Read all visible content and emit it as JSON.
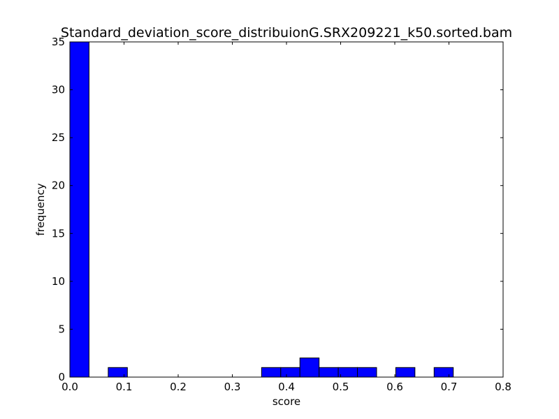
{
  "chart_data": {
    "type": "bar",
    "title": "Standard_deviation_score_distribuionG.SRX209221_k50.sorted.bam",
    "xlabel": "score",
    "ylabel": "frequency",
    "xlim": [
      0,
      0.8
    ],
    "ylim": [
      0,
      35
    ],
    "xticks": [
      "0.0",
      "0.1",
      "0.2",
      "0.3",
      "0.4",
      "0.5",
      "0.6",
      "0.7",
      "0.8"
    ],
    "yticks": [
      "0",
      "5",
      "10",
      "15",
      "20",
      "25",
      "30",
      "35"
    ],
    "bins": [
      {
        "start": 0.0,
        "end": 0.0354,
        "count": 35
      },
      {
        "start": 0.0708,
        "end": 0.1062,
        "count": 1
      },
      {
        "start": 0.354,
        "end": 0.3894,
        "count": 1
      },
      {
        "start": 0.3894,
        "end": 0.4248,
        "count": 1
      },
      {
        "start": 0.4248,
        "end": 0.4602,
        "count": 2
      },
      {
        "start": 0.4602,
        "end": 0.4956,
        "count": 1
      },
      {
        "start": 0.4956,
        "end": 0.531,
        "count": 1
      },
      {
        "start": 0.531,
        "end": 0.5664,
        "count": 1
      },
      {
        "start": 0.6018,
        "end": 0.6372,
        "count": 1
      },
      {
        "start": 0.6726,
        "end": 0.708,
        "count": 1
      }
    ],
    "bar_color": "#0000ff",
    "grid": false,
    "legend": "none"
  }
}
